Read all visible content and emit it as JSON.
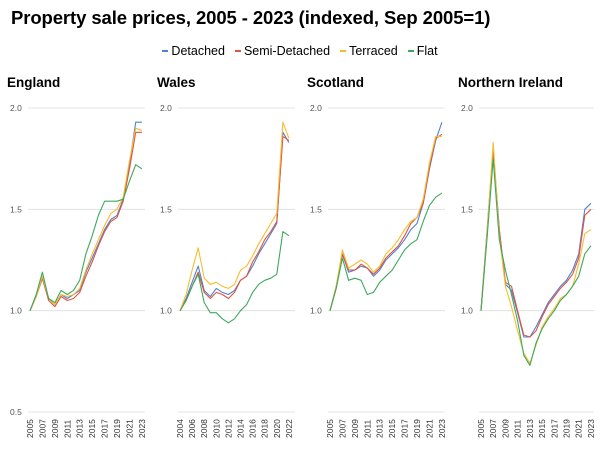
{
  "figure": {
    "title": "Property sale prices, 2005 - 2023 (indexed, Sep 2005=1)"
  },
  "legend": {
    "items": [
      {
        "label": "Detached",
        "color": "#4f81d8"
      },
      {
        "label": "Semi-Detached",
        "color": "#e0533e"
      },
      {
        "label": "Terraced",
        "color": "#f7bd2f"
      },
      {
        "label": "Flat",
        "color": "#3ea85d"
      }
    ]
  },
  "colors": {
    "detached": "#4f81d8",
    "semi_detached": "#e0533e",
    "terraced": "#f7bd2f",
    "flat": "#3ea85d",
    "gridline": "#dddddd"
  },
  "chart_data": [
    {
      "type": "line",
      "title": "England",
      "ylim": [
        0.5,
        2.0
      ],
      "yticks": [
        "0.5",
        "1.0",
        "1.5",
        "2.0"
      ],
      "xlim": [
        2005,
        2023.5
      ],
      "xticks": [
        "2005",
        "2007",
        "2009",
        "2011",
        "2013",
        "2015",
        "2017",
        "2019",
        "2021",
        "2023"
      ],
      "grid": true,
      "x": [
        2005,
        2006,
        2007,
        2008,
        2009,
        2010,
        2011,
        2012,
        2013,
        2014,
        2015,
        2016,
        2017,
        2018,
        2019,
        2020,
        2021,
        2022,
        2023
      ],
      "series": [
        {
          "name": "Detached",
          "color": "#4f81d8",
          "values": [
            1.0,
            1.07,
            1.16,
            1.06,
            1.03,
            1.08,
            1.06,
            1.08,
            1.1,
            1.19,
            1.26,
            1.33,
            1.4,
            1.45,
            1.47,
            1.55,
            1.72,
            1.93,
            1.93
          ]
        },
        {
          "name": "Semi-Detached",
          "color": "#e0533e",
          "values": [
            1.0,
            1.07,
            1.16,
            1.05,
            1.02,
            1.07,
            1.05,
            1.06,
            1.09,
            1.17,
            1.24,
            1.32,
            1.39,
            1.44,
            1.46,
            1.54,
            1.7,
            1.88,
            1.88
          ]
        },
        {
          "name": "Terraced",
          "color": "#f7bd2f",
          "values": [
            1.0,
            1.07,
            1.17,
            1.06,
            1.03,
            1.08,
            1.07,
            1.08,
            1.11,
            1.2,
            1.28,
            1.35,
            1.42,
            1.48,
            1.5,
            1.56,
            1.74,
            1.9,
            1.89
          ]
        },
        {
          "name": "Flat",
          "color": "#3ea85d",
          "values": [
            1.0,
            1.08,
            1.19,
            1.06,
            1.04,
            1.1,
            1.08,
            1.1,
            1.15,
            1.28,
            1.37,
            1.47,
            1.54,
            1.54,
            1.54,
            1.55,
            1.64,
            1.72,
            1.7
          ]
        }
      ]
    },
    {
      "type": "line",
      "title": "Wales",
      "ylim": [
        0.5,
        2.0
      ],
      "yticks": [
        "",
        "1.0",
        "1.5",
        "2.0"
      ],
      "xlim": [
        2004,
        2023
      ],
      "xticks": [
        "2004",
        "2006",
        "2008",
        "2010",
        "2012",
        "2014",
        "2016",
        "2018",
        "2020",
        "2022"
      ],
      "grid": true,
      "x": [
        2004,
        2005,
        2006,
        2007,
        2008,
        2009,
        2010,
        2011,
        2012,
        2013,
        2014,
        2015,
        2016,
        2017,
        2018,
        2019,
        2020,
        2021,
        2022
      ],
      "series": [
        {
          "name": "Detached",
          "color": "#4f81d8",
          "values": [
            1.0,
            1.06,
            1.14,
            1.22,
            1.1,
            1.07,
            1.11,
            1.09,
            1.08,
            1.1,
            1.15,
            1.17,
            1.22,
            1.28,
            1.33,
            1.38,
            1.43,
            1.88,
            1.83
          ]
        },
        {
          "name": "Semi-Detached",
          "color": "#e0533e",
          "values": [
            1.0,
            1.05,
            1.12,
            1.19,
            1.09,
            1.06,
            1.09,
            1.08,
            1.06,
            1.09,
            1.15,
            1.17,
            1.24,
            1.29,
            1.35,
            1.39,
            1.44,
            1.86,
            1.84
          ]
        },
        {
          "name": "Terraced",
          "color": "#f7bd2f",
          "values": [
            1.0,
            1.08,
            1.2,
            1.31,
            1.16,
            1.13,
            1.14,
            1.12,
            1.11,
            1.13,
            1.2,
            1.22,
            1.27,
            1.33,
            1.38,
            1.43,
            1.48,
            1.93,
            1.85
          ]
        },
        {
          "name": "Flat",
          "color": "#3ea85d",
          "values": [
            1.0,
            1.05,
            1.12,
            1.18,
            1.04,
            0.99,
            0.99,
            0.96,
            0.94,
            0.96,
            1.0,
            1.03,
            1.09,
            1.13,
            1.15,
            1.16,
            1.18,
            1.39,
            1.37
          ]
        }
      ]
    },
    {
      "type": "line",
      "title": "Scotland",
      "ylim": [
        0.5,
        2.0
      ],
      "yticks": [
        "",
        "1.0",
        "1.5",
        "2.0"
      ],
      "xlim": [
        2005,
        2023.5
      ],
      "xticks": [
        "2005",
        "2007",
        "2009",
        "2011",
        "2013",
        "2015",
        "2017",
        "2019",
        "2021",
        "2023"
      ],
      "grid": true,
      "x": [
        2005,
        2006,
        2007,
        2008,
        2009,
        2010,
        2011,
        2012,
        2013,
        2014,
        2015,
        2016,
        2017,
        2018,
        2019,
        2020,
        2021,
        2022,
        2023
      ],
      "series": [
        {
          "name": "Detached",
          "color": "#4f81d8",
          "values": [
            1.0,
            1.12,
            1.28,
            1.19,
            1.2,
            1.22,
            1.21,
            1.17,
            1.2,
            1.25,
            1.28,
            1.31,
            1.35,
            1.4,
            1.43,
            1.53,
            1.7,
            1.84,
            1.93
          ]
        },
        {
          "name": "Semi-Detached",
          "color": "#e0533e",
          "values": [
            1.0,
            1.11,
            1.28,
            1.2,
            1.2,
            1.23,
            1.21,
            1.18,
            1.21,
            1.26,
            1.29,
            1.32,
            1.37,
            1.43,
            1.46,
            1.53,
            1.71,
            1.85,
            1.87
          ]
        },
        {
          "name": "Terraced",
          "color": "#f7bd2f",
          "values": [
            1.0,
            1.12,
            1.3,
            1.21,
            1.23,
            1.25,
            1.23,
            1.19,
            1.22,
            1.28,
            1.31,
            1.35,
            1.4,
            1.44,
            1.46,
            1.55,
            1.73,
            1.86,
            1.86
          ]
        },
        {
          "name": "Flat",
          "color": "#3ea85d",
          "values": [
            1.0,
            1.11,
            1.26,
            1.15,
            1.16,
            1.15,
            1.08,
            1.09,
            1.14,
            1.17,
            1.2,
            1.25,
            1.3,
            1.33,
            1.35,
            1.44,
            1.52,
            1.56,
            1.58
          ]
        }
      ]
    },
    {
      "type": "line",
      "title": "Northern Ireland",
      "ylim": [
        0.5,
        2.0
      ],
      "yticks": [
        "",
        "1.0",
        "1.5",
        "2.0"
      ],
      "xlim": [
        2005,
        2023.5
      ],
      "xticks": [
        "2005",
        "2007",
        "2009",
        "2011",
        "2013",
        "2015",
        "2017",
        "2019",
        "2021",
        "2023"
      ],
      "grid": true,
      "x": [
        2005,
        2006,
        2007,
        2008,
        2009,
        2010,
        2011,
        2012,
        2013,
        2014,
        2015,
        2016,
        2017,
        2018,
        2019,
        2020,
        2021,
        2022,
        2023
      ],
      "series": [
        {
          "name": "Detached",
          "color": "#4f81d8",
          "values": [
            1.0,
            1.4,
            1.8,
            1.4,
            1.13,
            1.1,
            0.99,
            0.87,
            0.87,
            0.92,
            0.98,
            1.04,
            1.08,
            1.12,
            1.15,
            1.2,
            1.28,
            1.5,
            1.53
          ]
        },
        {
          "name": "Semi-Detached",
          "color": "#e0533e",
          "values": [
            1.0,
            1.38,
            1.78,
            1.4,
            1.14,
            1.12,
            1.0,
            0.88,
            0.87,
            0.9,
            0.97,
            1.03,
            1.07,
            1.11,
            1.14,
            1.18,
            1.26,
            1.47,
            1.5
          ]
        },
        {
          "name": "Terraced",
          "color": "#f7bd2f",
          "values": [
            1.0,
            1.39,
            1.83,
            1.37,
            1.12,
            1.02,
            0.9,
            0.79,
            0.74,
            0.83,
            0.92,
            0.97,
            1.01,
            1.06,
            1.08,
            1.12,
            1.23,
            1.38,
            1.4
          ]
        },
        {
          "name": "Flat",
          "color": "#3ea85d",
          "values": [
            1.0,
            1.36,
            1.75,
            1.35,
            1.2,
            1.08,
            0.95,
            0.78,
            0.73,
            0.84,
            0.91,
            0.96,
            1.0,
            1.05,
            1.08,
            1.12,
            1.17,
            1.28,
            1.32
          ]
        }
      ]
    }
  ]
}
